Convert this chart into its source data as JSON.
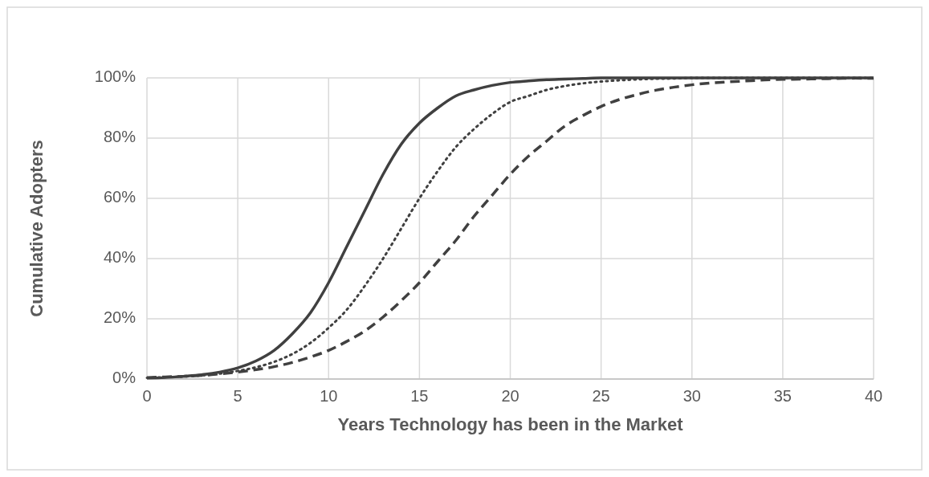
{
  "chart_data": {
    "type": "line",
    "xlabel": "Years Technology has been in the Market",
    "ylabel": "Cumulative Adopters",
    "x": [
      0,
      1,
      2,
      3,
      4,
      5,
      6,
      7,
      8,
      9,
      10,
      11,
      12,
      13,
      14,
      15,
      16,
      17,
      18,
      19,
      20,
      21,
      22,
      23,
      24,
      25,
      26,
      27,
      28,
      29,
      30,
      31,
      32,
      33,
      34,
      35,
      36,
      37,
      38,
      39,
      40
    ],
    "series": [
      {
        "color": "#404040",
        "line_style": "solid",
        "values": [
          0.3,
          0.5,
          0.9,
          1.4,
          2.3,
          3.7,
          6,
          9.5,
          15,
          22,
          32,
          44,
          56,
          68,
          78,
          85,
          90,
          94,
          96,
          97.5,
          98.5,
          99,
          99.4,
          99.6,
          99.8,
          100,
          100,
          100,
          100,
          100,
          100,
          100,
          100,
          100,
          100,
          100,
          100,
          100,
          100,
          100,
          100
        ]
      },
      {
        "color": "#404040",
        "line_style": "dotted",
        "values": [
          0.4,
          0.6,
          0.8,
          1.2,
          1.8,
          2.7,
          3.9,
          5.7,
          8.3,
          12,
          17,
          23,
          31,
          40,
          50,
          60,
          69,
          77,
          83,
          88,
          92,
          94,
          96,
          97.3,
          98.2,
          98.8,
          99.2,
          99.5,
          99.7,
          99.8,
          100,
          100,
          100,
          100,
          100,
          100,
          100,
          100,
          100,
          100,
          100
        ]
      },
      {
        "color": "#404040",
        "line_style": "dashed",
        "values": [
          0.5,
          0.7,
          0.9,
          1.2,
          1.7,
          2.3,
          3.1,
          4.1,
          5.5,
          7.3,
          9.5,
          12.5,
          16,
          20.6,
          26,
          32,
          39,
          46,
          54,
          61,
          68,
          74,
          79,
          84,
          87.5,
          90.5,
          92.8,
          94.5,
          95.9,
          96.9,
          97.7,
          98.3,
          98.7,
          99,
          99.3,
          99.5,
          99.6,
          99.7,
          99.8,
          99.9,
          99.9
        ]
      }
    ],
    "xlim": [
      0,
      40
    ],
    "xticks": [
      0,
      5,
      10,
      15,
      20,
      25,
      30,
      35,
      40
    ],
    "ylim": [
      0,
      100
    ],
    "yticks": [
      {
        "value": 0,
        "label": "0%"
      },
      {
        "value": 20,
        "label": "20%"
      },
      {
        "value": 40,
        "label": "40%"
      },
      {
        "value": 60,
        "label": "60%"
      },
      {
        "value": 80,
        "label": "80%"
      },
      {
        "value": 100,
        "label": "100%"
      }
    ],
    "grid": true
  }
}
